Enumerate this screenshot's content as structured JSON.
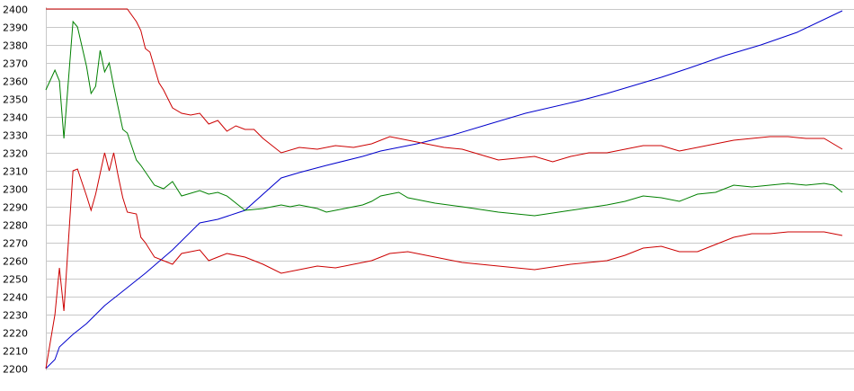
{
  "chart_data": {
    "type": "line",
    "title": "",
    "xlabel": "",
    "ylabel": "",
    "ylim": [
      2200,
      2400
    ],
    "yticks": [
      2200,
      2210,
      2220,
      2230,
      2240,
      2250,
      2260,
      2270,
      2280,
      2290,
      2300,
      2310,
      2320,
      2330,
      2340,
      2350,
      2360,
      2370,
      2380,
      2390,
      2400
    ],
    "xlim": [
      0,
      177
    ],
    "grid": "horizontal",
    "series": [
      {
        "color": "#0000cc",
        "x": [
          0,
          2,
          3,
          6,
          9,
          13,
          18,
          22,
          28,
          34,
          38,
          44,
          52,
          56,
          62,
          70,
          74,
          82,
          90,
          98,
          106,
          118,
          124,
          136,
          142,
          150,
          158,
          166,
          176
        ],
        "y": [
          2200,
          2205,
          2212,
          2219,
          2225,
          2235,
          2245,
          2253,
          2266,
          2281,
          2283,
          2288,
          2306,
          2309,
          2313,
          2318,
          2321,
          2325,
          2330,
          2336,
          2342,
          2349,
          2353,
          2362,
          2367,
          2374,
          2380,
          2387,
          2399
        ]
      },
      {
        "color": "#008000",
        "x": [
          0,
          2,
          3,
          4,
          6,
          7,
          9,
          10,
          11,
          12,
          13,
          14,
          15,
          16,
          17,
          18,
          20,
          21,
          24,
          26,
          28,
          30,
          34,
          36,
          38,
          40,
          44,
          48,
          52,
          54,
          56,
          58,
          60,
          62,
          64,
          66,
          68,
          70,
          72,
          74,
          78,
          80,
          86,
          92,
          100,
          108,
          116,
          124,
          128,
          132,
          136,
          140,
          144,
          148,
          152,
          156,
          160,
          164,
          168,
          172,
          174,
          176
        ],
        "y": [
          2355,
          2366,
          2360,
          2328,
          2393,
          2390,
          2368,
          2353,
          2357,
          2377,
          2365,
          2370,
          2357,
          2345,
          2333,
          2331,
          2316,
          2313,
          2302,
          2300,
          2304,
          2296,
          2299,
          2297,
          2298,
          2296,
          2288,
          2289,
          2291,
          2290,
          2291,
          2290,
          2289,
          2287,
          2288,
          2289,
          2290,
          2291,
          2293,
          2296,
          2298,
          2295,
          2292,
          2290,
          2287,
          2285,
          2288,
          2291,
          2293,
          2296,
          2295,
          2293,
          2297,
          2298,
          2302,
          2301,
          2302,
          2303,
          2302,
          2303,
          2302,
          2298
        ]
      },
      {
        "color": "#cc0000",
        "x": [
          0,
          18,
          20,
          21,
          22,
          23,
          25,
          26,
          28,
          30,
          32,
          34,
          36,
          38,
          40,
          42,
          44,
          46,
          48,
          52,
          56,
          60,
          64,
          68,
          72,
          76,
          80,
          84,
          88,
          92,
          96,
          100,
          104,
          108,
          112,
          116,
          120,
          124,
          128,
          132,
          136,
          140,
          144,
          148,
          152,
          156,
          160,
          164,
          168,
          172,
          176
        ],
        "y": [
          2400,
          2400,
          2393,
          2388,
          2378,
          2376,
          2359,
          2355,
          2345,
          2342,
          2341,
          2342,
          2336,
          2338,
          2332,
          2335,
          2333,
          2333,
          2328,
          2320,
          2323,
          2322,
          2324,
          2323,
          2325,
          2329,
          2327,
          2325,
          2323,
          2322,
          2319,
          2316,
          2317,
          2318,
          2315,
          2318,
          2320,
          2320,
          2322,
          2324,
          2324,
          2321,
          2323,
          2325,
          2327,
          2328,
          2329,
          2329,
          2328,
          2328,
          2322
        ]
      },
      {
        "color": "#cc0000",
        "x": [
          0,
          2,
          3,
          4,
          6,
          7,
          9,
          10,
          11,
          13,
          14,
          15,
          16,
          17,
          18,
          20,
          21,
          22,
          24,
          26,
          28,
          30,
          34,
          36,
          38,
          40,
          44,
          48,
          52,
          56,
          60,
          64,
          68,
          72,
          76,
          80,
          86,
          92,
          100,
          108,
          116,
          124,
          128,
          132,
          136,
          140,
          144,
          148,
          152,
          156,
          160,
          164,
          168,
          172,
          174,
          176
        ],
        "y": [
          2200,
          2230,
          2256,
          2232,
          2310,
          2311,
          2296,
          2288,
          2297,
          2320,
          2310,
          2320,
          2307,
          2295,
          2287,
          2286,
          2273,
          2270,
          2262,
          2260,
          2258,
          2264,
          2266,
          2260,
          2262,
          2264,
          2262,
          2258,
          2253,
          2255,
          2257,
          2256,
          2258,
          2260,
          2264,
          2265,
          2262,
          2259,
          2257,
          2255,
          2258,
          2260,
          2263,
          2267,
          2268,
          2265,
          2265,
          2269,
          2273,
          2275,
          2275,
          2276,
          2276,
          2276,
          2275,
          2274
        ]
      }
    ]
  }
}
